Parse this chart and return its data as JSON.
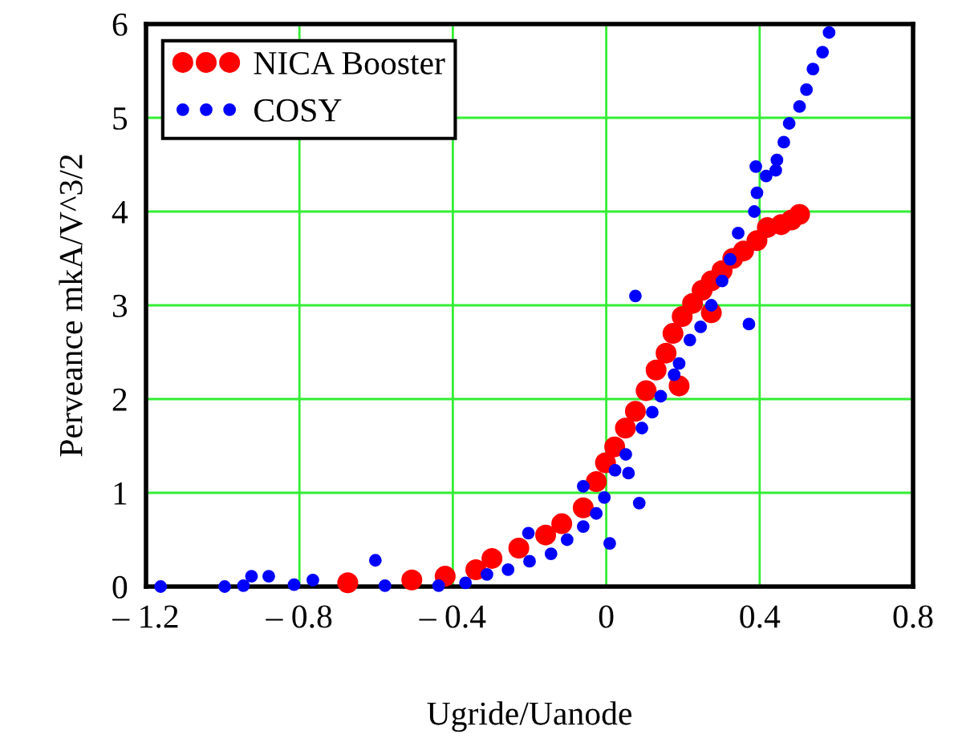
{
  "chart_data": {
    "type": "scatter",
    "xlabel": "Ugride/Uanode",
    "ylabel": "Perveance mkA/V^3/2",
    "xlim": [
      -1.2,
      0.8
    ],
    "ylim": [
      0,
      6
    ],
    "xticks": [
      {
        "value": -1.2,
        "label": "– 1.2"
      },
      {
        "value": -0.8,
        "label": "– 0.8"
      },
      {
        "value": -0.4,
        "label": "– 0.4"
      },
      0,
      0.4,
      0.8
    ],
    "yticks": [
      0,
      1,
      2,
      3,
      4,
      5,
      6
    ],
    "grid": true,
    "legend": "top left",
    "marker": "circle",
    "series": [
      {
        "name": "NICA Booster",
        "color": "#ff0000",
        "x": [
          -0.674,
          -0.507,
          -0.42,
          -0.34,
          -0.298,
          -0.228,
          -0.158,
          -0.116,
          -0.06,
          -0.026,
          -0.002,
          0.022,
          0.05,
          0.076,
          0.104,
          0.13,
          0.156,
          0.174,
          0.19,
          0.198,
          0.225,
          0.25,
          0.274,
          0.274,
          0.302,
          0.33,
          0.358,
          0.393,
          0.42,
          0.456,
          0.483,
          0.504
        ],
        "values": [
          0.04,
          0.07,
          0.11,
          0.18,
          0.3,
          0.41,
          0.55,
          0.67,
          0.84,
          1.12,
          1.32,
          1.49,
          1.69,
          1.87,
          2.09,
          2.31,
          2.49,
          2.7,
          2.14,
          2.88,
          3.02,
          3.16,
          3.26,
          2.92,
          3.37,
          3.5,
          3.58,
          3.69,
          3.83,
          3.86,
          3.91,
          3.97
        ]
      },
      {
        "name": "COSY",
        "color": "#0000ff",
        "x": [
          -1.162,
          -0.995,
          -0.946,
          -0.925,
          -0.88,
          -0.814,
          -0.765,
          -0.602,
          -0.577,
          -0.437,
          -0.367,
          -0.311,
          -0.256,
          -0.203,
          -0.2,
          -0.144,
          -0.102,
          -0.06,
          -0.06,
          -0.026,
          -0.005,
          0.009,
          0.023,
          0.051,
          0.058,
          0.076,
          0.086,
          0.093,
          0.12,
          0.142,
          0.177,
          0.19,
          0.218,
          0.246,
          0.274,
          0.302,
          0.323,
          0.344,
          0.372,
          0.386,
          0.393,
          0.39,
          0.417,
          0.445,
          0.442,
          0.463,
          0.477,
          0.504,
          0.522,
          0.539,
          0.564,
          0.581
        ],
        "values": [
          0,
          0,
          0.01,
          0.11,
          0.11,
          0.02,
          0.07,
          0.28,
          0.01,
          0.01,
          0.04,
          0.13,
          0.18,
          0.57,
          0.27,
          0.35,
          0.5,
          0.64,
          1.07,
          0.78,
          0.95,
          0.46,
          1.24,
          1.41,
          1.21,
          3.1,
          0.89,
          1.69,
          1.86,
          2.03,
          2.26,
          2.38,
          2.63,
          2.77,
          3.0,
          3.26,
          3.49,
          3.77,
          2.8,
          4.0,
          4.2,
          4.48,
          4.38,
          4.55,
          4.44,
          4.74,
          4.94,
          5.12,
          5.3,
          5.52,
          5.7,
          5.91
        ]
      }
    ]
  }
}
